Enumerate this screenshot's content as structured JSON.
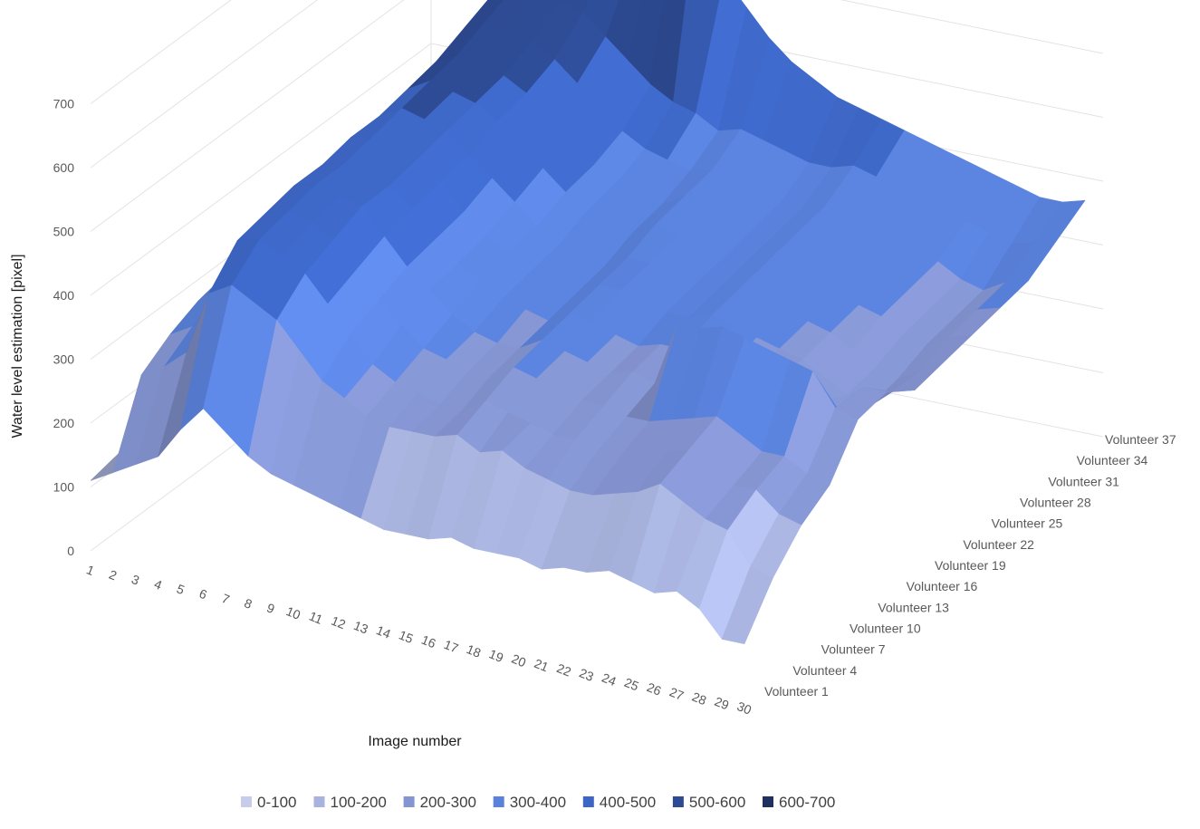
{
  "chart_data": {
    "type": "surface",
    "title": "",
    "xlabel": "Image number",
    "ylabel": "",
    "zlabel": "Water level estimation [pixel]",
    "x_categories": [
      "1",
      "2",
      "3",
      "4",
      "5",
      "6",
      "7",
      "8",
      "9",
      "10",
      "11",
      "12",
      "13",
      "14",
      "15",
      "16",
      "17",
      "18",
      "19",
      "20",
      "21",
      "22",
      "23",
      "24",
      "25",
      "26",
      "27",
      "28",
      "29",
      "30"
    ],
    "y_categories": [
      "Volunteer 1",
      "Volunteer 4",
      "Volunteer 7",
      "Volunteer 10",
      "Volunteer 13",
      "Volunteer 16",
      "Volunteer 19",
      "Volunteer 22",
      "Volunteer 25",
      "Volunteer 28",
      "Volunteer 31",
      "Volunteer 34",
      "Volunteer 37"
    ],
    "z_ticks": [
      "0",
      "100",
      "200",
      "300",
      "400",
      "500",
      "600",
      "700"
    ],
    "zlim": [
      0,
      700
    ],
    "grid": true,
    "legend_position": "bottom",
    "legend": [
      {
        "label": "0-100",
        "color": "#c7cde8"
      },
      {
        "label": "100-200",
        "color": "#a8b3de"
      },
      {
        "label": "200-300",
        "color": "#8595d2"
      },
      {
        "label": "300-400",
        "color": "#5a82dc"
      },
      {
        "label": "400-500",
        "color": "#3d66c4"
      },
      {
        "label": "500-600",
        "color": "#2d4a92"
      },
      {
        "label": "600-700",
        "color": "#1f2f5e"
      }
    ],
    "series": [
      {
        "name": "Volunteer 1",
        "values": [
          110,
          130,
          150,
          170,
          220,
          260,
          230,
          200,
          180,
          170,
          160,
          150,
          140,
          130,
          130,
          130,
          140,
          130,
          130,
          130,
          120,
          130,
          130,
          140,
          130,
          120,
          130,
          110,
          70,
          70
        ]
      },
      {
        "name": "Volunteer 4",
        "values": [
          120,
          250,
          270,
          300,
          400,
          420,
          400,
          380,
          340,
          300,
          280,
          260,
          250,
          250,
          250,
          260,
          240,
          250,
          230,
          220,
          210,
          210,
          220,
          230,
          250,
          230,
          210,
          200,
          150,
          140
        ]
      },
      {
        "name": "Volunteer 7",
        "values": [
          130,
          280,
          300,
          330,
          450,
          460,
          440,
          420,
          380,
          340,
          300,
          280,
          270,
          260,
          260,
          280,
          270,
          260,
          250,
          250,
          240,
          240,
          250,
          260,
          270,
          250,
          230,
          230,
          200,
          190
        ]
      },
      {
        "name": "Volunteer 10",
        "values": [
          140,
          300,
          330,
          360,
          460,
          470,
          460,
          440,
          400,
          360,
          330,
          300,
          290,
          280,
          280,
          300,
          290,
          280,
          270,
          270,
          260,
          260,
          270,
          280,
          290,
          270,
          250,
          250,
          230,
          220
        ]
      },
      {
        "name": "Volunteer 13",
        "values": [
          150,
          310,
          350,
          380,
          470,
          480,
          470,
          460,
          420,
          380,
          350,
          320,
          300,
          290,
          290,
          310,
          300,
          290,
          280,
          290,
          280,
          380,
          380,
          390,
          380,
          370,
          360,
          350,
          300,
          290
        ]
      },
      {
        "name": "Volunteer 16",
        "values": [
          160,
          320,
          360,
          390,
          470,
          480,
          470,
          460,
          430,
          390,
          360,
          340,
          320,
          310,
          300,
          320,
          310,
          300,
          290,
          300,
          300,
          300,
          290,
          280,
          280,
          270,
          260,
          250,
          300,
          300
        ]
      },
      {
        "name": "Volunteer 19",
        "values": [
          170,
          330,
          370,
          400,
          480,
          490,
          480,
          470,
          440,
          400,
          370,
          350,
          330,
          320,
          310,
          330,
          330,
          320,
          310,
          310,
          320,
          310,
          300,
          290,
          280,
          260,
          240,
          230,
          260,
          270
        ]
      },
      {
        "name": "Volunteer 22",
        "values": [
          180,
          340,
          380,
          410,
          480,
          500,
          490,
          480,
          450,
          420,
          390,
          360,
          340,
          330,
          320,
          340,
          340,
          330,
          320,
          320,
          330,
          320,
          310,
          300,
          290,
          270,
          250,
          240,
          260,
          280
        ]
      },
      {
        "name": "Volunteer 25",
        "values": [
          190,
          350,
          390,
          420,
          490,
          510,
          500,
          490,
          470,
          440,
          410,
          380,
          360,
          350,
          340,
          360,
          350,
          340,
          330,
          330,
          340,
          330,
          320,
          310,
          300,
          290,
          270,
          260,
          280,
          290
        ]
      },
      {
        "name": "Volunteer 28",
        "values": [
          200,
          360,
          400,
          430,
          500,
          520,
          510,
          500,
          480,
          450,
          420,
          390,
          370,
          360,
          350,
          370,
          360,
          350,
          340,
          340,
          350,
          340,
          330,
          320,
          310,
          300,
          280,
          270,
          290,
          300
        ]
      },
      {
        "name": "Volunteer 31",
        "values": [
          210,
          370,
          410,
          440,
          520,
          540,
          530,
          520,
          500,
          470,
          440,
          410,
          390,
          380,
          370,
          380,
          370,
          360,
          350,
          350,
          360,
          350,
          340,
          330,
          320,
          310,
          290,
          280,
          300,
          310
        ]
      },
      {
        "name": "Volunteer 34",
        "values": [
          220,
          380,
          420,
          450,
          540,
          560,
          560,
          550,
          540,
          510,
          480,
          450,
          430,
          420,
          400,
          410,
          400,
          390,
          380,
          380,
          390,
          380,
          370,
          360,
          350,
          340,
          330,
          320,
          330,
          340
        ]
      },
      {
        "name": "Volunteer 37",
        "values": [
          230,
          400,
          440,
          480,
          560,
          600,
          620,
          620,
          610,
          600,
          640,
          700,
          760,
          600,
          560,
          520,
          490,
          470,
          450,
          440,
          430,
          420,
          410,
          400,
          390,
          380,
          370,
          360,
          360,
          370
        ]
      }
    ]
  }
}
